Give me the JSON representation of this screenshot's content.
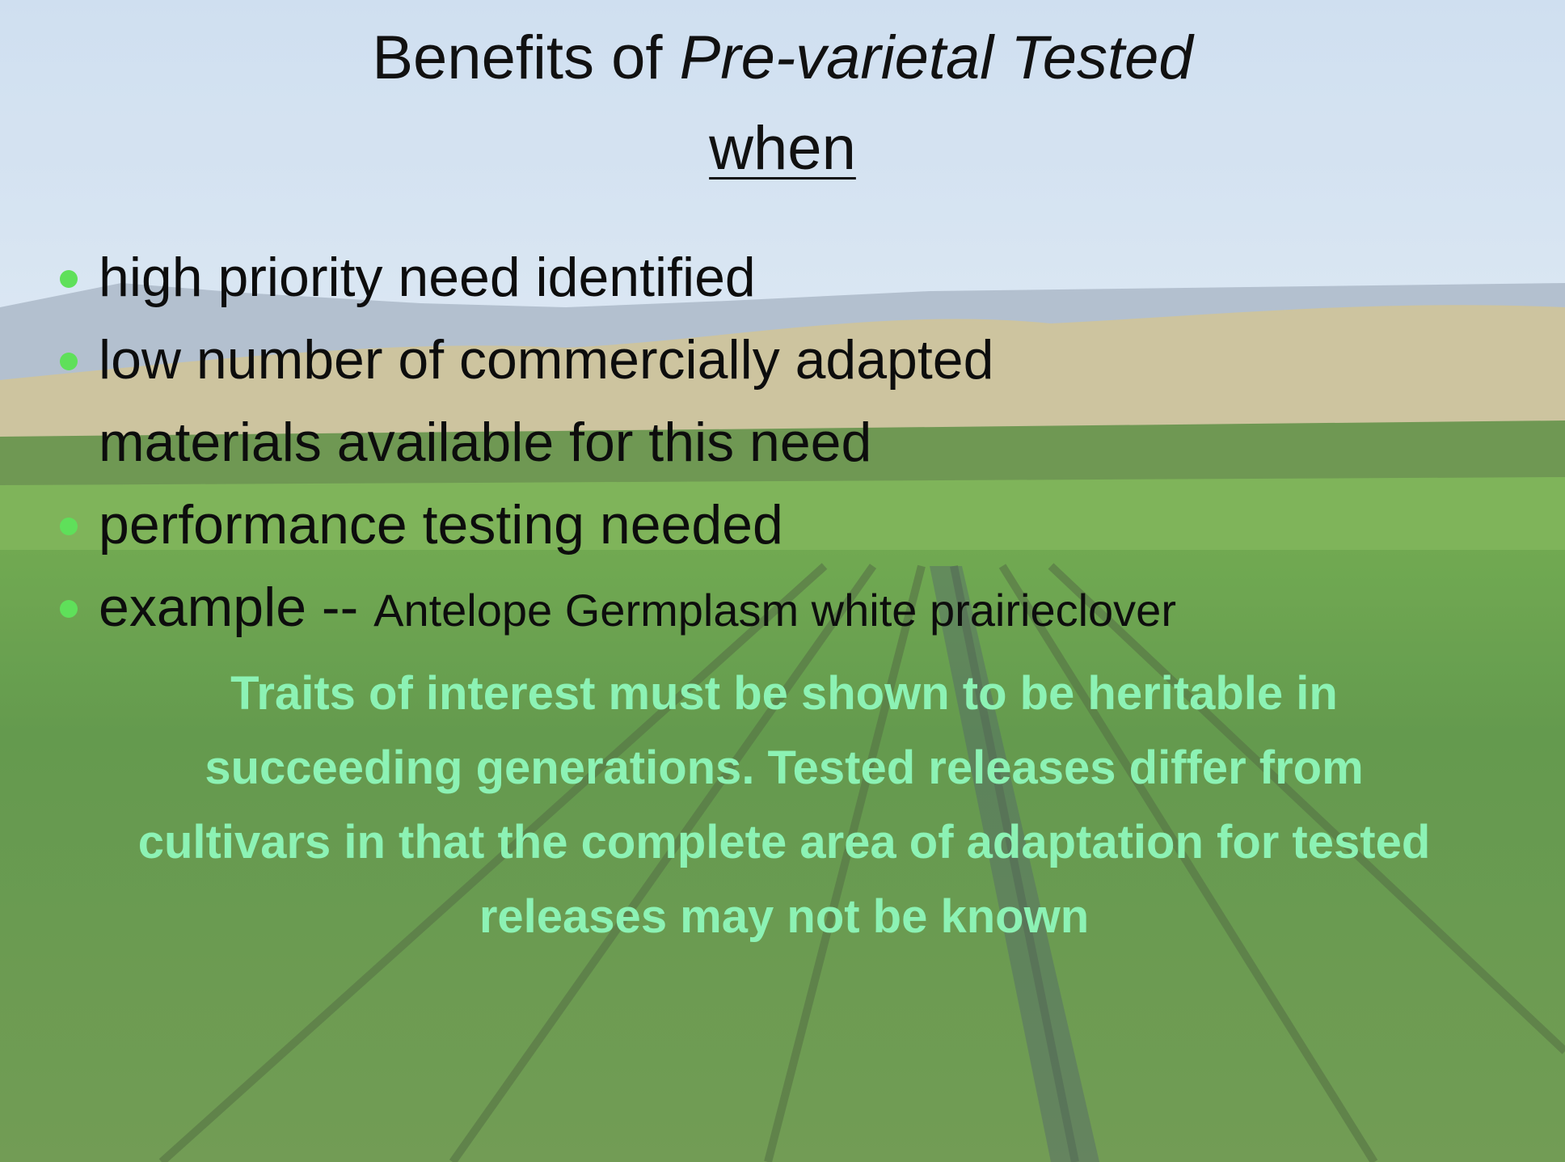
{
  "slide": {
    "title": {
      "prefix": "Benefits of ",
      "emphasis": "Pre-varietal Tested",
      "subtitle": "when"
    },
    "bullets": [
      {
        "text": "high priority need identified"
      },
      {
        "text": "low number of commercially adapted materials available for this need"
      },
      {
        "text": "performance testing  needed"
      },
      {
        "text": "example -- ",
        "detail": "Antelope Germplasm white prairieclover"
      }
    ],
    "note": "Traits of interest must be shown to be heritable in succeeding generations. Tested releases differ from cultivars in that the complete area of adaptation for tested releases may not be known"
  }
}
